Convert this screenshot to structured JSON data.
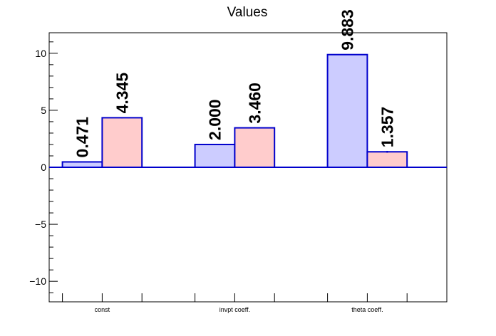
{
  "chart_data": {
    "type": "bar",
    "title": "Values",
    "xlabel": "",
    "ylabel": "",
    "categories": [
      "const",
      "invpt coeff.",
      "theta coeff."
    ],
    "series": [
      {
        "values": [
          0.471,
          2.0,
          9.883
        ],
        "errors": [
          0.0,
          0.0,
          0.0
        ],
        "color": "#ccccff",
        "edge": "#0000cc"
      },
      {
        "values": [
          4.345,
          3.46,
          1.357
        ],
        "errors": [
          0.05,
          0.05,
          0.08
        ],
        "color": "#ffcccc",
        "edge": "#0000cc"
      }
    ],
    "data_labels": [
      [
        "0.471",
        "2.000",
        "9.883"
      ],
      [
        "4.345",
        "3.460",
        "1.357"
      ]
    ],
    "ylim": [
      -11.8,
      11.8
    ],
    "yticks": [
      -10,
      -5,
      0,
      5,
      10
    ],
    "ytick_labels": [
      "−10",
      "−5",
      "0",
      "5",
      "10"
    ],
    "grid": false,
    "legend": "none"
  }
}
